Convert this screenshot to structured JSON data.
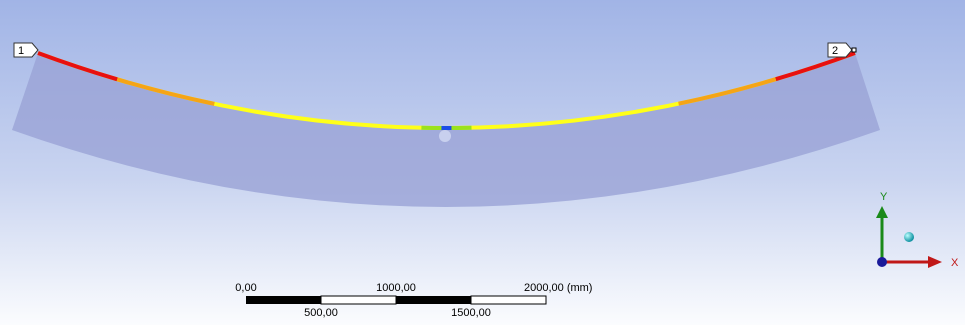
{
  "beam_labels": [
    "1",
    "2"
  ],
  "scale_bar": {
    "top_labels": [
      "0,00",
      "1000,00",
      "2000,00 (mm)"
    ],
    "bottom_labels": [
      "500,00",
      "1500,00"
    ]
  },
  "triad": {
    "y_label": "Y",
    "x_label": "X"
  }
}
